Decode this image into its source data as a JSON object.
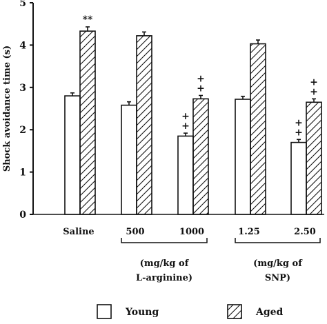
{
  "chart_data": {
    "type": "bar",
    "ylabel": "Shock avoidance time (s)",
    "ylim": [
      0,
      5
    ],
    "yticks": [
      "0",
      "1",
      "2",
      "3",
      "4",
      "5"
    ],
    "categories": [
      "Saline",
      "500",
      "1000",
      "1.25",
      "2.50"
    ],
    "series": [
      {
        "name": "Young",
        "pattern": "open",
        "values": [
          2.8,
          2.58,
          1.85,
          2.72,
          1.7
        ],
        "errors": [
          0.07,
          0.08,
          0.07,
          0.07,
          0.07
        ]
      },
      {
        "name": "Aged",
        "pattern": "hatched",
        "values": [
          4.33,
          4.22,
          2.73,
          4.03,
          2.65
        ],
        "errors": [
          0.1,
          0.09,
          0.08,
          0.09,
          0.08
        ]
      }
    ],
    "annotations": [
      {
        "category": "Saline",
        "series": "Aged",
        "text": "**"
      },
      {
        "category": "1000",
        "series": "Young",
        "text": "++"
      },
      {
        "category": "1000",
        "series": "Aged",
        "text": "++"
      },
      {
        "category": "2.50",
        "series": "Young",
        "text": "++"
      },
      {
        "category": "2.50",
        "series": "Aged",
        "text": "++"
      }
    ],
    "groups": [
      {
        "categories": [
          "500",
          "1000"
        ],
        "label_line1": "(mg/kg of",
        "label_line2": "L-arginine)"
      },
      {
        "categories": [
          "1.25",
          "2.50"
        ],
        "label_line1": "(mg/kg of",
        "label_line2": "SNP)"
      }
    ],
    "legend": {
      "position": "bottom",
      "items": [
        "Young",
        "Aged"
      ]
    },
    "colors": {
      "ink": "#111111",
      "background": "#ffffff"
    }
  }
}
